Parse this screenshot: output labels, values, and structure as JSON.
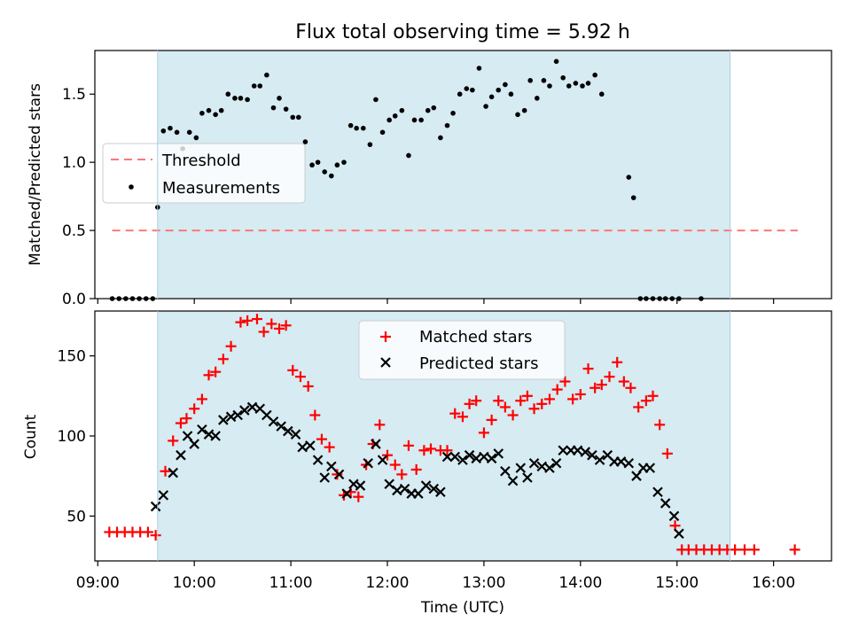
{
  "chart_data": [
    {
      "type": "scatter",
      "title": "Flux total observing time = 5.92 h",
      "xlabel": "",
      "ylabel": "Matched/Predicted stars",
      "xlim": [
        8.97,
        16.6
      ],
      "ylim": [
        0.0,
        1.82
      ],
      "yticks": [
        0.0,
        0.5,
        1.0,
        1.5
      ],
      "ytick_labels": [
        "0.0",
        "0.5",
        "1.0",
        "1.5"
      ],
      "shaded_span": {
        "x": [
          9.62,
          15.55
        ],
        "color": "#add8e6"
      },
      "legend": {
        "position": "center-left",
        "entries": [
          "Threshold",
          "Measurements"
        ]
      },
      "threshold": {
        "name": "Threshold",
        "x": [
          9.15,
          16.25
        ],
        "y": 0.5,
        "color": "#ff7777",
        "style": "dashed"
      },
      "series": [
        {
          "name": "Measurements",
          "color": "#000000",
          "points": [
            [
              9.15,
              0
            ],
            [
              9.22,
              0
            ],
            [
              9.29,
              0
            ],
            [
              9.36,
              0
            ],
            [
              9.43,
              0
            ],
            [
              9.5,
              0
            ],
            [
              9.57,
              0
            ],
            [
              9.62,
              0.67
            ],
            [
              9.68,
              1.23
            ],
            [
              9.75,
              1.25
            ],
            [
              9.82,
              1.22
            ],
            [
              9.88,
              1.1
            ],
            [
              9.95,
              1.22
            ],
            [
              10.02,
              1.18
            ],
            [
              10.08,
              1.36
            ],
            [
              10.15,
              1.38
            ],
            [
              10.22,
              1.35
            ],
            [
              10.28,
              1.38
            ],
            [
              10.35,
              1.5
            ],
            [
              10.42,
              1.47
            ],
            [
              10.48,
              1.47
            ],
            [
              10.55,
              1.46
            ],
            [
              10.62,
              1.56
            ],
            [
              10.68,
              1.56
            ],
            [
              10.75,
              1.64
            ],
            [
              10.82,
              1.4
            ],
            [
              10.88,
              1.47
            ],
            [
              10.95,
              1.39
            ],
            [
              11.02,
              1.33
            ],
            [
              11.08,
              1.33
            ],
            [
              11.15,
              1.15
            ],
            [
              11.22,
              0.98
            ],
            [
              11.28,
              1.0
            ],
            [
              11.35,
              0.93
            ],
            [
              11.42,
              0.9
            ],
            [
              11.48,
              0.98
            ],
            [
              11.55,
              1.0
            ],
            [
              11.62,
              1.27
            ],
            [
              11.68,
              1.25
            ],
            [
              11.75,
              1.25
            ],
            [
              11.82,
              1.13
            ],
            [
              11.88,
              1.46
            ],
            [
              11.95,
              1.22
            ],
            [
              12.02,
              1.31
            ],
            [
              12.08,
              1.34
            ],
            [
              12.15,
              1.38
            ],
            [
              12.22,
              1.05
            ],
            [
              12.28,
              1.31
            ],
            [
              12.35,
              1.31
            ],
            [
              12.42,
              1.38
            ],
            [
              12.48,
              1.4
            ],
            [
              12.55,
              1.18
            ],
            [
              12.62,
              1.27
            ],
            [
              12.68,
              1.36
            ],
            [
              12.75,
              1.5
            ],
            [
              12.82,
              1.54
            ],
            [
              12.88,
              1.53
            ],
            [
              12.95,
              1.69
            ],
            [
              13.02,
              1.41
            ],
            [
              13.08,
              1.48
            ],
            [
              13.15,
              1.53
            ],
            [
              13.22,
              1.57
            ],
            [
              13.28,
              1.5
            ],
            [
              13.35,
              1.35
            ],
            [
              13.42,
              1.38
            ],
            [
              13.48,
              1.6
            ],
            [
              13.55,
              1.47
            ],
            [
              13.62,
              1.6
            ],
            [
              13.68,
              1.56
            ],
            [
              13.75,
              1.74
            ],
            [
              13.82,
              1.62
            ],
            [
              13.88,
              1.56
            ],
            [
              13.95,
              1.58
            ],
            [
              14.02,
              1.56
            ],
            [
              14.08,
              1.58
            ],
            [
              14.15,
              1.64
            ],
            [
              14.22,
              1.5
            ],
            [
              14.5,
              0.89
            ],
            [
              14.55,
              0.74
            ],
            [
              14.62,
              0
            ],
            [
              14.68,
              0
            ],
            [
              14.75,
              0
            ],
            [
              14.82,
              0
            ],
            [
              14.88,
              0
            ],
            [
              14.95,
              0
            ],
            [
              15.02,
              0
            ],
            [
              15.25,
              0
            ]
          ]
        }
      ]
    },
    {
      "type": "scatter",
      "title": "",
      "xlabel": "Time (UTC)",
      "ylabel": "Count",
      "xlim": [
        8.97,
        16.6
      ],
      "ylim": [
        22,
        178
      ],
      "yticks": [
        50,
        100,
        150
      ],
      "ytick_labels": [
        "50",
        "100",
        "150"
      ],
      "xticks": [
        9,
        10,
        11,
        12,
        13,
        14,
        15,
        16
      ],
      "xtick_labels": [
        "09:00",
        "10:00",
        "11:00",
        "12:00",
        "13:00",
        "14:00",
        "15:00",
        "16:00"
      ],
      "shaded_span": {
        "x": [
          9.62,
          15.55
        ],
        "color": "#add8e6"
      },
      "legend": {
        "position": "top-center",
        "entries": [
          "Matched stars",
          "Predicted stars"
        ]
      },
      "series": [
        {
          "name": "Matched stars",
          "marker": "plus",
          "color": "#ff0000",
          "points": [
            [
              9.12,
              40
            ],
            [
              9.2,
              40
            ],
            [
              9.28,
              40
            ],
            [
              9.36,
              40
            ],
            [
              9.44,
              40
            ],
            [
              9.52,
              40
            ],
            [
              9.6,
              38
            ],
            [
              9.7,
              78
            ],
            [
              9.78,
              97
            ],
            [
              9.86,
              108
            ],
            [
              9.92,
              111
            ],
            [
              10.0,
              117
            ],
            [
              10.08,
              123
            ],
            [
              10.15,
              138
            ],
            [
              10.22,
              140
            ],
            [
              10.3,
              148
            ],
            [
              10.38,
              156
            ],
            [
              10.48,
              171
            ],
            [
              10.55,
              172
            ],
            [
              10.65,
              173
            ],
            [
              10.72,
              165
            ],
            [
              10.8,
              170
            ],
            [
              10.88,
              167
            ],
            [
              10.95,
              169
            ],
            [
              11.02,
              141
            ],
            [
              11.1,
              137
            ],
            [
              11.18,
              131
            ],
            [
              11.25,
              113
            ],
            [
              11.32,
              98
            ],
            [
              11.4,
              93
            ],
            [
              11.48,
              76
            ],
            [
              11.55,
              63
            ],
            [
              11.62,
              65
            ],
            [
              11.7,
              62
            ],
            [
              11.78,
              82
            ],
            [
              11.85,
              95
            ],
            [
              11.92,
              107
            ],
            [
              12.0,
              88
            ],
            [
              12.08,
              82
            ],
            [
              12.15,
              76
            ],
            [
              12.22,
              94
            ],
            [
              12.3,
              79
            ],
            [
              12.38,
              91
            ],
            [
              12.45,
              92
            ],
            [
              12.55,
              91
            ],
            [
              12.62,
              91
            ],
            [
              12.7,
              114
            ],
            [
              12.78,
              112
            ],
            [
              12.85,
              120
            ],
            [
              12.92,
              122
            ],
            [
              13.0,
              102
            ],
            [
              13.08,
              110
            ],
            [
              13.15,
              122
            ],
            [
              13.22,
              118
            ],
            [
              13.3,
              113
            ],
            [
              13.38,
              122
            ],
            [
              13.45,
              125
            ],
            [
              13.52,
              117
            ],
            [
              13.6,
              120
            ],
            [
              13.68,
              123
            ],
            [
              13.76,
              129
            ],
            [
              13.84,
              134
            ],
            [
              13.92,
              123
            ],
            [
              14.0,
              126
            ],
            [
              14.08,
              142
            ],
            [
              14.15,
              130
            ],
            [
              14.22,
              132
            ],
            [
              14.3,
              137
            ],
            [
              14.38,
              146
            ],
            [
              14.45,
              134
            ],
            [
              14.52,
              130
            ],
            [
              14.6,
              118
            ],
            [
              14.68,
              122
            ],
            [
              14.75,
              125
            ],
            [
              14.82,
              107
            ],
            [
              14.9,
              89
            ],
            [
              14.98,
              44
            ],
            [
              15.05,
              29
            ],
            [
              15.12,
              29
            ],
            [
              15.2,
              29
            ],
            [
              15.28,
              29
            ],
            [
              15.36,
              29
            ],
            [
              15.44,
              29
            ],
            [
              15.52,
              29
            ],
            [
              15.6,
              29
            ],
            [
              15.7,
              29
            ],
            [
              15.8,
              29
            ],
            [
              16.22,
              29
            ]
          ]
        },
        {
          "name": "Predicted stars",
          "marker": "x",
          "color": "#000000",
          "points": [
            [
              9.6,
              56
            ],
            [
              9.68,
              63
            ],
            [
              9.78,
              77
            ],
            [
              9.86,
              88
            ],
            [
              9.93,
              100
            ],
            [
              10.0,
              95
            ],
            [
              10.08,
              104
            ],
            [
              10.15,
              101
            ],
            [
              10.22,
              100
            ],
            [
              10.3,
              110
            ],
            [
              10.38,
              112
            ],
            [
              10.45,
              113
            ],
            [
              10.52,
              116
            ],
            [
              10.6,
              118
            ],
            [
              10.68,
              117
            ],
            [
              10.75,
              113
            ],
            [
              10.82,
              109
            ],
            [
              10.9,
              106
            ],
            [
              10.97,
              103
            ],
            [
              11.05,
              101
            ],
            [
              11.12,
              93
            ],
            [
              11.2,
              94
            ],
            [
              11.28,
              85
            ],
            [
              11.35,
              74
            ],
            [
              11.42,
              81
            ],
            [
              11.5,
              76
            ],
            [
              11.58,
              64
            ],
            [
              11.65,
              70
            ],
            [
              11.72,
              69
            ],
            [
              11.8,
              83
            ],
            [
              11.88,
              95
            ],
            [
              11.95,
              85
            ],
            [
              12.02,
              70
            ],
            [
              12.1,
              66
            ],
            [
              12.18,
              67
            ],
            [
              12.25,
              64
            ],
            [
              12.32,
              64
            ],
            [
              12.4,
              69
            ],
            [
              12.48,
              67
            ],
            [
              12.55,
              65
            ],
            [
              12.62,
              87
            ],
            [
              12.7,
              87
            ],
            [
              12.78,
              85
            ],
            [
              12.85,
              88
            ],
            [
              12.92,
              86
            ],
            [
              13.0,
              87
            ],
            [
              13.08,
              86
            ],
            [
              13.15,
              89
            ],
            [
              13.22,
              78
            ],
            [
              13.3,
              72
            ],
            [
              13.38,
              80
            ],
            [
              13.45,
              74
            ],
            [
              13.52,
              83
            ],
            [
              13.6,
              81
            ],
            [
              13.68,
              80
            ],
            [
              13.75,
              83
            ],
            [
              13.82,
              91
            ],
            [
              13.9,
              91
            ],
            [
              13.97,
              91
            ],
            [
              14.05,
              90
            ],
            [
              14.12,
              88
            ],
            [
              14.2,
              85
            ],
            [
              14.28,
              88
            ],
            [
              14.35,
              84
            ],
            [
              14.42,
              84
            ],
            [
              14.5,
              83
            ],
            [
              14.58,
              75
            ],
            [
              14.65,
              80
            ],
            [
              14.72,
              80
            ],
            [
              14.8,
              65
            ],
            [
              14.88,
              58
            ],
            [
              14.97,
              50
            ],
            [
              15.02,
              39
            ]
          ]
        }
      ]
    }
  ]
}
